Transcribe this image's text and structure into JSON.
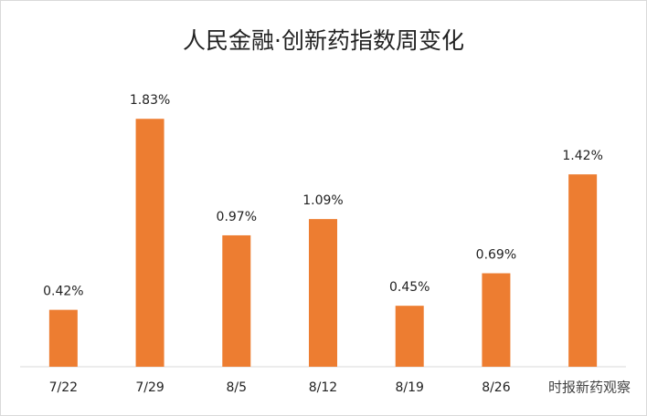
{
  "chart_data": {
    "type": "bar",
    "title": "人民金融·创新药指数周变化",
    "categories": [
      "7/22",
      "7/29",
      "8/5",
      "8/12",
      "8/19",
      "8/26",
      null
    ],
    "values": [
      0.42,
      1.83,
      0.97,
      1.09,
      0.45,
      0.69,
      1.42
    ],
    "value_labels": [
      "0.42%",
      "1.83%",
      "0.97%",
      "1.09%",
      "0.45%",
      "0.69%",
      "1.42%"
    ],
    "color": "#ed7d31",
    "ylim": [
      0,
      2
    ],
    "watermark": "时报新药观察"
  }
}
